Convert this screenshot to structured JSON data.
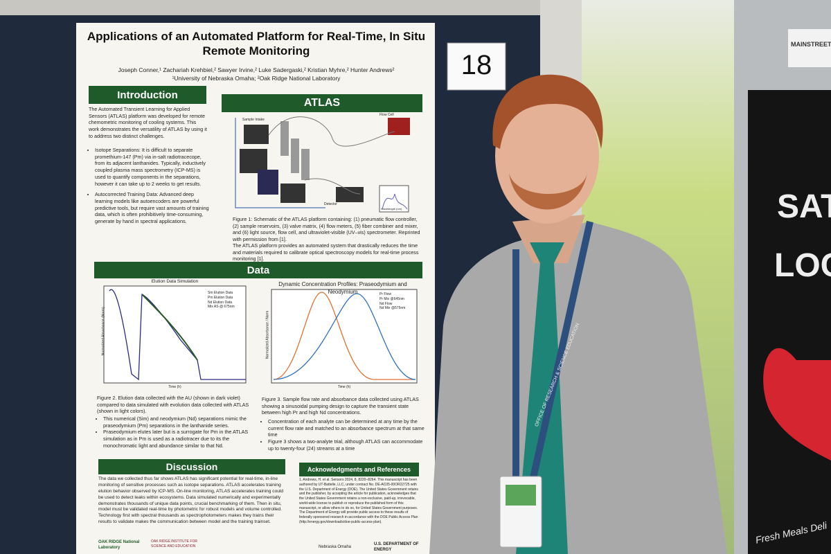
{
  "poster": {
    "title": "Applications of an Automated Platform for Real-Time, In Situ Remote Monitoring",
    "authors": "Joseph Conner,¹ Zachariah Krehbiel,² Sawyer Irvine,² Luke Sadergaski,² Kristian Myhre,² Hunter Andrews²",
    "affiliations": "¹University of Nebraska Omaha; ²Oak Ridge National Laboratory",
    "board_number": "18",
    "introduction": {
      "heading": "Introduction",
      "text": "The Automated Transient Learning for Applied Sensors (ATLAS) platform was developed for remote chemometric monitoring of cooling systems. This work demonstrates the versatility of ATLAS by using it to address two distinct challenges.",
      "bullets": [
        "Isotope Separations: It is difficult to separate promethium-147 (Pm) via in-salt radiotracecope, from its adjacent lanthanides. Typically, inductively coupled plasma mass spectrometry (ICP-MS) is used to quantify components in the separations, however it can take up to 2 weeks to get results.",
        "Autocorrected Training Data: Advanced deep learning models like autoencoders are powerful predictive tools, but require vast amounts of training data, which is often prohibitively time-consuming, generate by hand in spectral applications."
      ]
    },
    "atlas": {
      "heading": "ATLAS",
      "labels": [
        "Sample Intake",
        "Flow Cell",
        "Detector",
        "Wavelength (nm)"
      ],
      "caption": "Figure 1: Schematic of the ATLAS platform containing: (1) pneumatic flow controller, (2) sample reservoirs, (3) valve matrix, (4) flow meters, (5) fiber combiner and mixer, and (6) light source, flow cell, and ultraviolet-visible (UV–vis) spectrometer. Reprinted with permission from [1].",
      "text": "The ATLAS platform provides an automated system that drastically reduces the time and materials required to calibrate optical spectroscopy models for real-time process monitoring [1]."
    },
    "data": {
      "heading": "Data",
      "fig2_title": "Elution Data Simulation",
      "fig2_legend": [
        "Sm Elution Data",
        "Pm Elution Data",
        "Nd Elution Data",
        "Mix AS @ 675nm"
      ],
      "fig2_ylabel": "Normalized Absorbance (Norm)",
      "fig2_xlabel": "Time (h)",
      "fig3_title": "Dynamic Concentration Profiles: Praseodymium and Neodymium",
      "fig3_legend": [
        "Pr Flow",
        "Pr Mix @645nm",
        "Nd Flow",
        "Nd Mix @575nm"
      ],
      "fig3_ylabel": "Normalized Absorbance / Norm",
      "fig3_xlabel": "Time (h)",
      "fig2_caption": "Figure 2. Elution data collected with the AU (shown in dark violet) compared to data simulated with evolution data collected with ATLAS (shown in light colors).",
      "fig2_bullets": [
        "This numerical (Sim) and neodymium (Nd) separations mimic the praseodymium (Pm) separations in the lanthanide series.",
        "Praseodymium elutes later but is a surrogate for Pm in the ATLAS simulation as in Pm is used as a radiotracer due to its the monochromatic light and abundance similar to that Nd."
      ],
      "fig3_caption": "Figure 3. Sample flow rate and absorbance data collected using ATLAS showing a sinusoidal pumping design to capture the transient state between high Pr and high Nd concentrations.",
      "fig3_bullets": [
        "Concentration of each analyte can be determined at any time by the current flow rate and matched to an absorbance spectrum at that same time",
        "Figure 3 shows a two-analyte trial, although ATLAS can accommodate up to twenty-four (24) streams at a time"
      ]
    },
    "discussion": {
      "heading": "Discussion",
      "text": "The data we collected thus far shows ATLAS has significant potential for real-time, in-line monitoring of sensitive processes such as isotope separations. ATLAS accelerates training elution behavior observed by ICP-MS. On-line monitoring, ATLAS accelerates training could be used to detect leaks within ecosystems. Data simulated numerically and experimentally demonstrates thousands of unique data points, crucial benchmarking of them. Then in situ, model must be validated real-time by photometric for robust models and volume controlled. Technology first with spectral thousands as spectrophotometers makes they trains their results to validate makes the communication between model and the training trainset."
    },
    "acknowledgments": {
      "heading": "Acknowledgments and References",
      "text": "1. Andrews, H. et al. Sensors 2024, 8, 8220–8264. This manuscript has been authored by UT-Battelle, LLC, under contract No. DE-AC05-00OR22725 with the U.S. Department of Energy (DOE). The United States Government retains and the publisher, by accepting the article for publication, acknowledges that the United States Government retains a non-exclusive, paid-up, irrevocable, world-wide license to publish or reproduce the published form of this manuscript, or allow others to do so, for United States Government purposes. The Department of Energy will provide public access to these results of federally sponsored research in accordance with the DOE Public Access Plan (http://energy.gov/downloads/doe-public-access-plan)."
    },
    "logos": [
      "OAK RIDGE National Laboratory",
      "OAK RIDGE INSTITUTE FOR SCIENCE AND EDUCATION",
      "Nebraska Omaha",
      "U.S. DEPARTMENT OF ENERGY"
    ]
  },
  "background": {
    "brand": "MAINSTREET",
    "sign_words": [
      "SAT",
      "LOCA"
    ],
    "slogan": "Fresh Meals Deli"
  },
  "badge": {
    "lanyard": "OFFICE OF RESEARCH & SCIENCE EDUCATION"
  }
}
